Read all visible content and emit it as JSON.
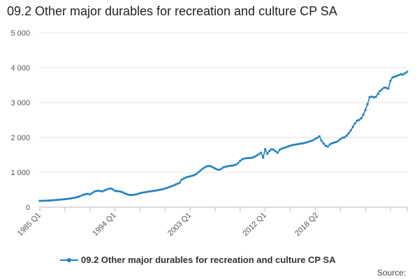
{
  "page": {
    "source_label": "Source:"
  },
  "chart_data": {
    "type": "line",
    "title": "09.2 Other major durables for recreation and culture CP SA",
    "xlabel": "",
    "ylabel": "",
    "ylim": [
      0,
      5000
    ],
    "y_ticks": [
      0,
      1000,
      2000,
      3000,
      4000,
      5000
    ],
    "y_tick_labels": [
      "0",
      "1 000",
      "2 000",
      "3 000",
      "4 000",
      "5 000"
    ],
    "x_tick_labels": [
      "1985 Q1",
      "1994 Q1",
      "2003 Q1",
      "2012 Q1",
      "2018 Q2"
    ],
    "x_tick_indices": [
      0,
      36,
      72,
      108,
      133
    ],
    "legend": "top-bottom",
    "color": "#1f7fbf",
    "series": [
      {
        "name": "09.2 Other major durables for recreation and culture CP SA",
        "values": [
          180,
          182,
          184,
          186,
          190,
          194,
          198,
          202,
          206,
          212,
          218,
          224,
          230,
          236,
          244,
          252,
          262,
          275,
          290,
          310,
          335,
          360,
          375,
          380,
          365,
          400,
          440,
          465,
          470,
          460,
          455,
          480,
          505,
          525,
          535,
          510,
          470,
          460,
          455,
          440,
          420,
          390,
          365,
          350,
          350,
          355,
          365,
          380,
          400,
          415,
          425,
          435,
          445,
          455,
          462,
          470,
          480,
          492,
          505,
          518,
          535,
          555,
          575,
          598,
          620,
          648,
          675,
          700,
          790,
          820,
          850,
          870,
          885,
          900,
          920,
          950,
          1000,
          1050,
          1100,
          1140,
          1170,
          1180,
          1170,
          1140,
          1110,
          1080,
          1070,
          1100,
          1140,
          1160,
          1175,
          1185,
          1190,
          1200,
          1220,
          1260,
          1330,
          1370,
          1395,
          1405,
          1410,
          1415,
          1420,
          1450,
          1480,
          1520,
          1560,
          1420,
          1660,
          1530,
          1610,
          1660,
          1650,
          1600,
          1560,
          1650,
          1680,
          1700,
          1720,
          1740,
          1760,
          1780,
          1790,
          1800,
          1810,
          1820,
          1830,
          1845,
          1860,
          1880,
          1900,
          1920,
          1960,
          1990,
          2030,
          1900,
          1820,
          1760,
          1740,
          1800,
          1830,
          1850,
          1870,
          1900,
          1950,
          1990,
          2000,
          2050,
          2120,
          2200,
          2300,
          2400,
          2480,
          2500,
          2550,
          2650,
          2780,
          2950,
          3150,
          3170,
          3150,
          3160,
          3250,
          3330,
          3380,
          3430,
          3420,
          3400,
          3620,
          3720,
          3740,
          3760,
          3790,
          3810,
          3800,
          3840,
          3880
        ]
      }
    ]
  }
}
